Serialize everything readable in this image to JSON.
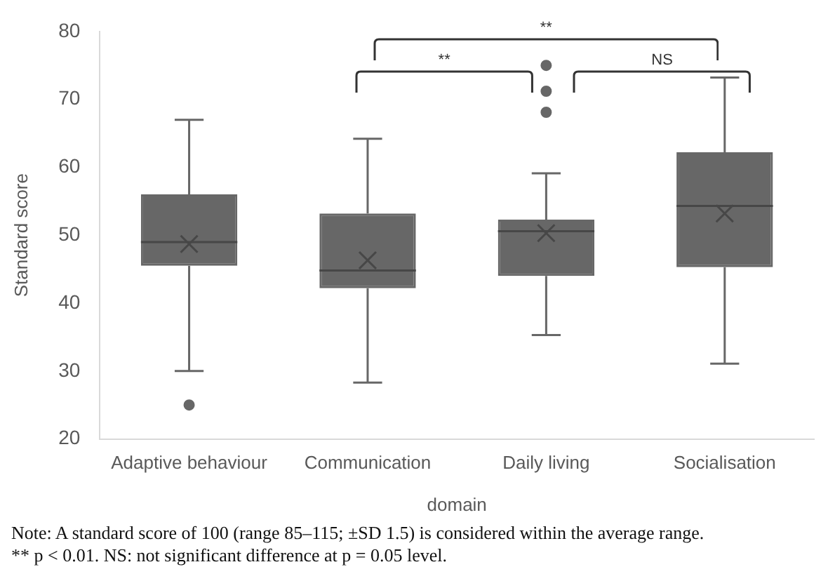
{
  "chart_data": {
    "type": "box",
    "xlabel": "domain",
    "ylabel": "Standard score",
    "categories": [
      "Adaptive behaviour",
      "Communication",
      "Daily living",
      "Socialisation"
    ],
    "color": "#676767",
    "boxes": [
      {
        "low": 30,
        "q1": 45.5,
        "median": 49,
        "q3": 56,
        "high": 67,
        "mean": 48.7,
        "outliers": [
          25
        ]
      },
      {
        "low": 28.3,
        "q1": 42.2,
        "median": 44.8,
        "q3": 53.2,
        "high": 64.2,
        "mean": 46.3
      },
      {
        "low": 35.3,
        "q1": 44,
        "median": 50.6,
        "q3": 52.3,
        "high": 59.1,
        "mean": 50.3,
        "outliers": [
          75,
          71.2,
          68.1
        ]
      },
      {
        "low": 31.1,
        "q1": 45.3,
        "median": 54.3,
        "q3": 62.2,
        "high": 73.2,
        "mean": 53.2
      }
    ],
    "ylim": [
      20,
      80
    ],
    "yticks": [
      20,
      30,
      40,
      50,
      60,
      70,
      80
    ],
    "grid": false,
    "legend": false,
    "annotations": [
      "**",
      "**",
      "NS",
      "Note: A standard score of 100 (range 85–115; ±SD 1.5) is considered within the average range.",
      "** p < 0.01. NS: not significant difference at p = 0.05 level."
    ]
  }
}
